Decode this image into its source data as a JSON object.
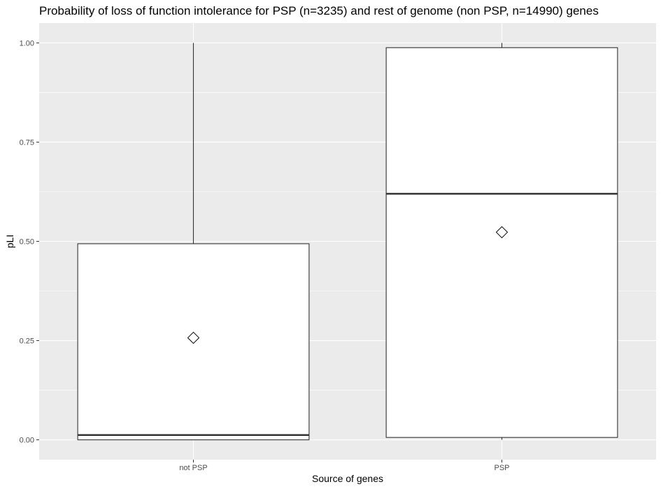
{
  "chart_data": {
    "type": "boxplot",
    "title": "Probability of loss of function intolerance for PSP (n=3235) and rest of genome (non PSP, n=14990) genes",
    "xlabel": "Source of genes",
    "ylabel": "pLI",
    "categories": [
      "not PSP",
      "PSP"
    ],
    "ylim": [
      -0.05,
      1.05
    ],
    "yticks": [
      0.0,
      0.25,
      0.5,
      0.75,
      1.0
    ],
    "ytick_labels": [
      "0.00",
      "0.25",
      "0.50",
      "0.75",
      "1.00"
    ],
    "boxes": [
      {
        "category": "not PSP",
        "min": 0.0,
        "q1": 0.0,
        "median": 0.012,
        "q3": 0.494,
        "max": 1.0,
        "mean": 0.257
      },
      {
        "category": "PSP",
        "min": 0.0,
        "q1": 0.006,
        "median": 0.62,
        "q3": 0.988,
        "max": 1.0,
        "mean": 0.523
      }
    ],
    "mean_marker": "diamond",
    "grid": true,
    "legend": "none",
    "colors": {
      "panel": "#ebebeb",
      "grid": "#ffffff",
      "box_fill": "#ffffff",
      "box_line": "#333333",
      "tick": "#333333"
    }
  }
}
